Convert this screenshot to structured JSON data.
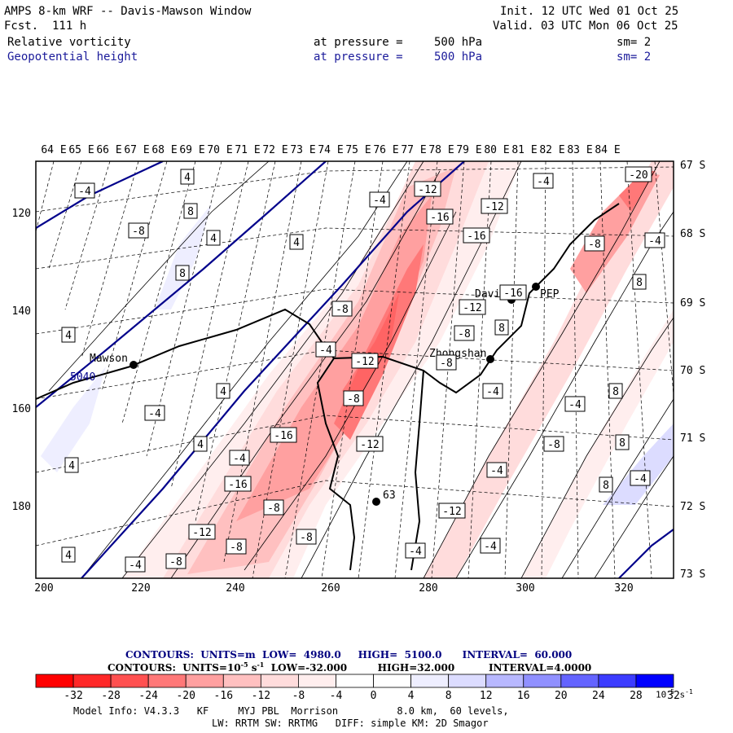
{
  "header": {
    "title": "AMPS 8-km WRF -- Davis-Mawson Window",
    "forecast": "Fcst.  111 h",
    "init": "Init. 12 UTC Wed 01 Oct 25",
    "valid": "Valid. 03 UTC Mon 06 Oct 25"
  },
  "fields": [
    {
      "name": "Relative vorticity",
      "pressure_label": "at pressure =",
      "pressure_value": "500 hPa",
      "smooth": "sm= 2"
    },
    {
      "name": "Geopotential height",
      "pressure_label": "at pressure =",
      "pressure_value": "500 hPa",
      "smooth": "sm= 2"
    }
  ],
  "top_axis_labels": [
    "64 E",
    "65 E",
    "66 E",
    "67 E",
    "68 E",
    "69 E",
    "70 E",
    "71 E",
    "72 E",
    "73 E",
    "74 E",
    "75 E",
    "76 E",
    "77 E",
    "78 E",
    "79 E",
    "80 E",
    "81 E",
    "82 E",
    "83 E",
    "84 E"
  ],
  "right_axis_labels": [
    "67 S",
    "68 S",
    "69 S",
    "70 S",
    "71 S",
    "72 S",
    "73 S"
  ],
  "left_axis_labels": [
    "120",
    "140",
    "160",
    "180"
  ],
  "bottom_axis_labels": [
    "200",
    "220",
    "240",
    "260",
    "280",
    "300",
    "320"
  ],
  "stations": [
    {
      "name": "Mawson"
    },
    {
      "name": "Davis"
    },
    {
      "name": "Zhongshan"
    },
    {
      "name": "PEP"
    },
    {
      "name": "63"
    }
  ],
  "contour_value_labels": [
    "-4",
    "4",
    "-8",
    "8",
    "-12",
    "-16",
    "-20",
    "-4",
    "4",
    "8",
    "-8",
    "-12",
    "-16",
    "-4",
    "4",
    "-8",
    "-12",
    "-16",
    "-4",
    "4",
    "8",
    "-8",
    "-4",
    "4",
    "8",
    "-4",
    "4",
    "-8",
    "-12",
    "-4",
    "8",
    "-4",
    "-16",
    "-8",
    "-12",
    "-8",
    "-16",
    "-12",
    "-4",
    "-8",
    "-12",
    "-8",
    "-4",
    "-8",
    "-4",
    "-4",
    "8",
    "-4",
    "8",
    "-8",
    "-4",
    "4",
    "4"
  ],
  "height_contour_label": "5040",
  "contour_info": {
    "height": {
      "prefix": "CONTOURS:  UNITS=m",
      "low_label": "LOW=",
      "low": "4980.0",
      "high_label": "HIGH=",
      "high": "5100.0",
      "interval_label": "INTERVAL=",
      "interval": "60.000"
    },
    "vorticity": {
      "prefix": "CONTOURS:  UNITS=10",
      "exp": "-5",
      "unit_tail": " s",
      "unit_exp": "-1",
      "low_label": "LOW=",
      "low": "-32.000",
      "high_label": "HIGH=",
      "high": "32.000",
      "interval_label": "INTERVAL=",
      "interval": "4.0000"
    }
  },
  "colorbar": {
    "colors": [
      "#ff0000",
      "#ff2828",
      "#ff5050",
      "#ff7878",
      "#ffa0a0",
      "#ffc0c0",
      "#ffdcdc",
      "#ffeeee",
      "#ffffff",
      "#ffffff",
      "#eeeeff",
      "#dcdcff",
      "#b8b8ff",
      "#9090ff",
      "#6464ff",
      "#3c3cff",
      "#0000ff"
    ],
    "labels": [
      "-32",
      "-28",
      "-24",
      "-20",
      "-16",
      "-12",
      "-8",
      "-4",
      "0",
      "4",
      "8",
      "12",
      "16",
      "20",
      "24",
      "28",
      "32"
    ],
    "unit_prefix": "10",
    "unit_exp": "-5",
    "unit_tail": " s",
    "unit_tail_exp": "-1"
  },
  "model_info": {
    "line1": "Model Info: V4.3.3   KF     MYJ PBL  Morrison          8.0 km,  60 levels,",
    "line2": "LW: RRTM SW: RRTMG   DIFF: simple KM: 2D Smagor"
  }
}
